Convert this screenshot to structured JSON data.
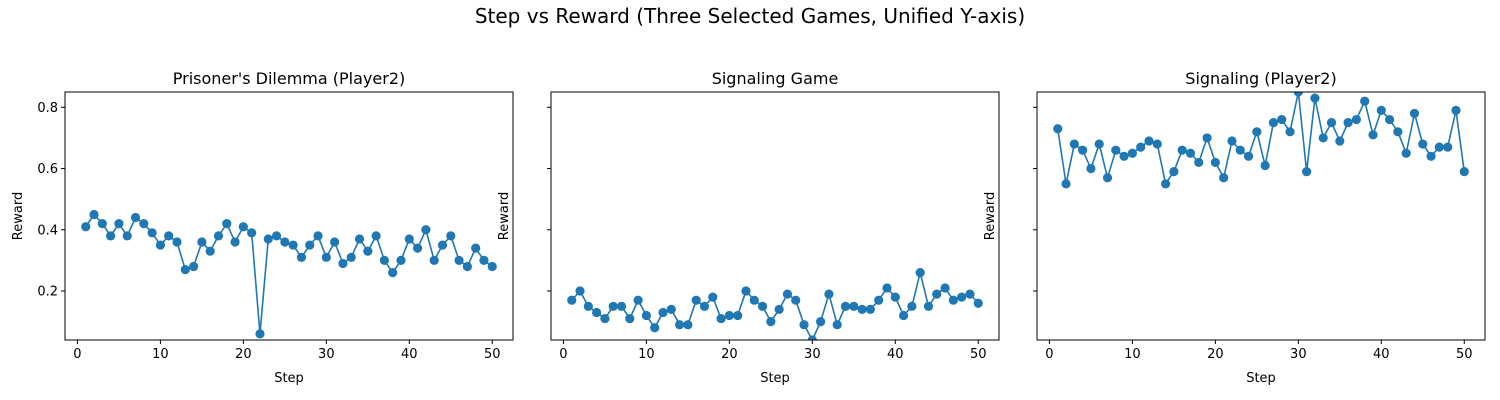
{
  "figure": {
    "title": "Step vs Reward (Three Selected Games, Unified Y-axis)"
  },
  "chart_data": [
    {
      "type": "line",
      "title": "Prisoner's Dilemma (Player2)",
      "xlabel": "Step",
      "ylabel": "Reward",
      "xlim": [
        -1.5,
        52.5
      ],
      "ylim": [
        0.04,
        0.85
      ],
      "xticks": [
        0,
        10,
        20,
        30,
        40,
        50
      ],
      "yticks": [
        0.2,
        0.4,
        0.6,
        0.8
      ],
      "show_y_tick_labels": true,
      "grid": false,
      "color": "#1f77b4",
      "marker": "circle",
      "x": [
        1,
        2,
        3,
        4,
        5,
        6,
        7,
        8,
        9,
        10,
        11,
        12,
        13,
        14,
        15,
        16,
        17,
        18,
        19,
        20,
        21,
        22,
        23,
        24,
        25,
        26,
        27,
        28,
        29,
        30,
        31,
        32,
        33,
        34,
        35,
        36,
        37,
        38,
        39,
        40,
        41,
        42,
        43,
        44,
        45,
        46,
        47,
        48,
        49,
        50
      ],
      "values": [
        0.41,
        0.45,
        0.42,
        0.38,
        0.42,
        0.38,
        0.44,
        0.42,
        0.39,
        0.35,
        0.38,
        0.36,
        0.27,
        0.28,
        0.36,
        0.33,
        0.38,
        0.42,
        0.36,
        0.41,
        0.39,
        0.06,
        0.37,
        0.38,
        0.36,
        0.35,
        0.31,
        0.35,
        0.38,
        0.31,
        0.36,
        0.29,
        0.31,
        0.37,
        0.33,
        0.38,
        0.3,
        0.26,
        0.3,
        0.37,
        0.34,
        0.4,
        0.3,
        0.35,
        0.38,
        0.3,
        0.28,
        0.34,
        0.3,
        0.28
      ]
    },
    {
      "type": "line",
      "title": "Signaling Game",
      "xlabel": "Step",
      "ylabel": "Reward",
      "xlim": [
        -1.5,
        52.5
      ],
      "ylim": [
        0.04,
        0.85
      ],
      "xticks": [
        0,
        10,
        20,
        30,
        40,
        50
      ],
      "yticks": [
        0.2,
        0.4,
        0.6,
        0.8
      ],
      "show_y_tick_labels": false,
      "grid": false,
      "color": "#1f77b4",
      "marker": "circle",
      "x": [
        1,
        2,
        3,
        4,
        5,
        6,
        7,
        8,
        9,
        10,
        11,
        12,
        13,
        14,
        15,
        16,
        17,
        18,
        19,
        20,
        21,
        22,
        23,
        24,
        25,
        26,
        27,
        28,
        29,
        30,
        31,
        32,
        33,
        34,
        35,
        36,
        37,
        38,
        39,
        40,
        41,
        42,
        43,
        44,
        45,
        46,
        47,
        48,
        49,
        50
      ],
      "values": [
        0.17,
        0.2,
        0.15,
        0.13,
        0.11,
        0.15,
        0.15,
        0.11,
        0.17,
        0.12,
        0.08,
        0.13,
        0.14,
        0.09,
        0.09,
        0.17,
        0.15,
        0.18,
        0.11,
        0.12,
        0.12,
        0.2,
        0.17,
        0.15,
        0.1,
        0.14,
        0.19,
        0.17,
        0.09,
        0.04,
        0.1,
        0.19,
        0.09,
        0.15,
        0.15,
        0.14,
        0.14,
        0.17,
        0.21,
        0.18,
        0.12,
        0.15,
        0.26,
        0.15,
        0.19,
        0.21,
        0.17,
        0.18,
        0.19,
        0.16
      ]
    },
    {
      "type": "line",
      "title": "Signaling (Player2)",
      "xlabel": "Step",
      "ylabel": "Reward",
      "xlim": [
        -1.5,
        52.5
      ],
      "ylim": [
        0.04,
        0.85
      ],
      "xticks": [
        0,
        10,
        20,
        30,
        40,
        50
      ],
      "yticks": [
        0.2,
        0.4,
        0.6,
        0.8
      ],
      "show_y_tick_labels": false,
      "grid": false,
      "color": "#1f77b4",
      "marker": "circle",
      "x": [
        1,
        2,
        3,
        4,
        5,
        6,
        7,
        8,
        9,
        10,
        11,
        12,
        13,
        14,
        15,
        16,
        17,
        18,
        19,
        20,
        21,
        22,
        23,
        24,
        25,
        26,
        27,
        28,
        29,
        30,
        31,
        32,
        33,
        34,
        35,
        36,
        37,
        38,
        39,
        40,
        41,
        42,
        43,
        44,
        45,
        46,
        47,
        48,
        49,
        50
      ],
      "values": [
        0.73,
        0.55,
        0.68,
        0.66,
        0.6,
        0.68,
        0.57,
        0.66,
        0.64,
        0.65,
        0.67,
        0.69,
        0.68,
        0.55,
        0.59,
        0.66,
        0.65,
        0.62,
        0.7,
        0.62,
        0.57,
        0.69,
        0.66,
        0.64,
        0.72,
        0.61,
        0.75,
        0.76,
        0.72,
        0.85,
        0.59,
        0.83,
        0.7,
        0.75,
        0.69,
        0.75,
        0.76,
        0.82,
        0.71,
        0.79,
        0.76,
        0.72,
        0.65,
        0.78,
        0.68,
        0.64,
        0.67,
        0.67,
        0.79,
        0.59
      ]
    }
  ]
}
